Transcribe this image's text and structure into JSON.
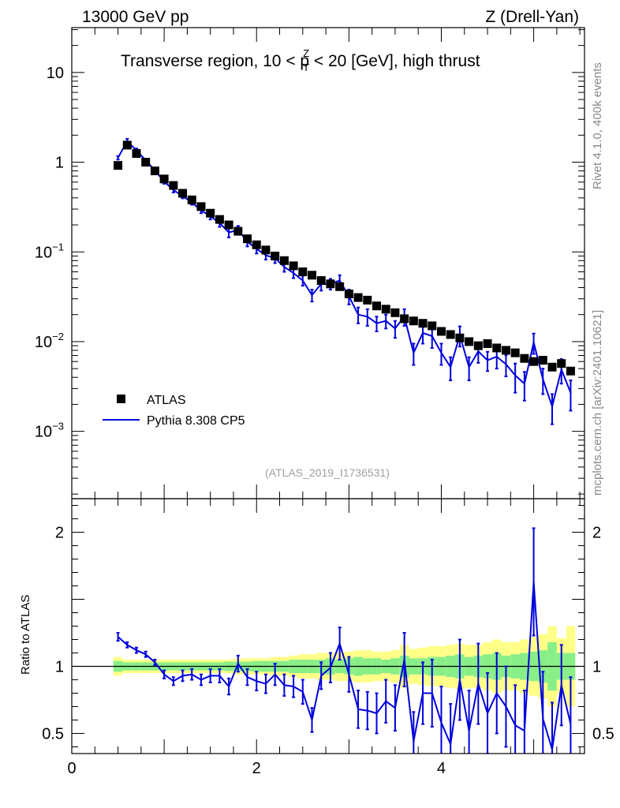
{
  "header": {
    "energy": "13000 GeV pp",
    "process": "Z (Drell-Yan)"
  },
  "side_labels": {
    "rivet": "Rivet 4.1.0,  400k events",
    "site": "mcplots.cern.ch [arXiv:2401.10621]"
  },
  "colors": {
    "data": "#000000",
    "mc": "#0000dd",
    "band_inner": "#88ee88",
    "band_outer": "#ffff88"
  },
  "chart_data": [
    {
      "type": "scatter",
      "title_parts": {
        "pre": "Transverse region, 10 < p",
        "sup": "Z",
        "sub": "T",
        "post": " < 20 [GeV], high thrust"
      },
      "yscale": "log",
      "xlim": [
        0,
        5.55
      ],
      "ylim": [
        0.00025,
        50
      ],
      "yticks": [
        {
          "value": 10,
          "label": "10"
        },
        {
          "value": 1,
          "label": "1"
        },
        {
          "value": 0.1,
          "base": "10",
          "exp": "−1"
        },
        {
          "value": 0.01,
          "base": "10",
          "exp": "−2"
        },
        {
          "value": 0.001,
          "base": "10",
          "exp": "−3"
        }
      ],
      "watermark": "(ATLAS_2019_I1736531)",
      "legend": [
        {
          "label": "ATLAS",
          "kind": "marker"
        },
        {
          "label": "Pythia 8.308 CP5",
          "kind": "line"
        }
      ],
      "x": [
        0.5,
        0.6,
        0.7,
        0.8,
        0.9,
        1.0,
        1.1,
        1.2,
        1.3,
        1.4,
        1.5,
        1.6,
        1.7,
        1.8,
        1.9,
        2.0,
        2.1,
        2.2,
        2.3,
        2.4,
        2.5,
        2.6,
        2.7,
        2.8,
        2.9,
        3.0,
        3.1,
        3.2,
        3.3,
        3.4,
        3.5,
        3.6,
        3.7,
        3.8,
        3.9,
        4.0,
        4.1,
        4.2,
        4.3,
        4.4,
        4.5,
        4.6,
        4.7,
        4.8,
        4.9,
        5.0,
        5.1,
        5.2,
        5.3,
        5.4
      ],
      "series": [
        {
          "name": "ATLAS",
          "values": [
            0.92,
            1.55,
            1.25,
            1.0,
            0.8,
            0.65,
            0.55,
            0.45,
            0.38,
            0.32,
            0.27,
            0.23,
            0.2,
            0.17,
            0.14,
            0.12,
            0.105,
            0.09,
            0.08,
            0.07,
            0.06,
            0.055,
            0.048,
            0.044,
            0.041,
            0.034,
            0.031,
            0.029,
            0.025,
            0.023,
            0.021,
            0.018,
            0.017,
            0.016,
            0.015,
            0.013,
            0.012,
            0.011,
            0.01,
            0.009,
            0.0095,
            0.0085,
            0.008,
            0.0075,
            0.0065,
            0.006,
            0.0062,
            0.0052,
            0.0057,
            0.0047
          ]
        },
        {
          "name": "Pythia 8.308 CP5",
          "values": [
            1.12,
            1.72,
            1.35,
            1.05,
            0.81,
            0.61,
            0.49,
            0.42,
            0.355,
            0.29,
            0.25,
            0.21,
            0.165,
            0.175,
            0.13,
            0.108,
            0.092,
            0.085,
            0.068,
            0.058,
            0.048,
            0.033,
            0.044,
            0.044,
            0.048,
            0.032,
            0.02,
            0.019,
            0.016,
            0.017,
            0.014,
            0.019,
            0.0075,
            0.0125,
            0.0115,
            0.0075,
            0.0052,
            0.0118,
            0.0052,
            0.0078,
            0.0062,
            0.0068,
            0.0056,
            0.0042,
            0.0034,
            0.0098,
            0.0038,
            0.0019,
            0.0049,
            0.0027
          ],
          "errors": [
            0.05,
            0.1,
            0.07,
            0.04,
            0.04,
            0.035,
            0.03,
            0.025,
            0.02,
            0.02,
            0.02,
            0.02,
            0.02,
            0.02,
            0.015,
            0.012,
            0.01,
            0.01,
            0.008,
            0.007,
            0.006,
            0.005,
            0.007,
            0.006,
            0.007,
            0.006,
            0.004,
            0.004,
            0.003,
            0.003,
            0.003,
            0.004,
            0.002,
            0.003,
            0.003,
            0.002,
            0.0015,
            0.003,
            0.0015,
            0.002,
            0.0015,
            0.0018,
            0.0015,
            0.0015,
            0.0012,
            0.0025,
            0.0012,
            0.0007,
            0.0015,
            0.001
          ]
        }
      ]
    },
    {
      "type": "line",
      "ylabel": "Ratio to ATLAS",
      "xlim": [
        0,
        5.55
      ],
      "ylim": [
        0.35,
        2.25
      ],
      "xticks": [
        {
          "value": 0,
          "label": "0"
        },
        {
          "value": 2,
          "label": "2"
        },
        {
          "value": 4,
          "label": "4"
        }
      ],
      "yticks": [
        {
          "value": 2,
          "label": "2"
        },
        {
          "value": 1,
          "label": "1"
        },
        {
          "value": 0.5,
          "label": "0.5"
        }
      ],
      "x": [
        0.5,
        0.6,
        0.7,
        0.8,
        0.9,
        1.0,
        1.1,
        1.2,
        1.3,
        1.4,
        1.5,
        1.6,
        1.7,
        1.8,
        1.9,
        2.0,
        2.1,
        2.2,
        2.3,
        2.4,
        2.5,
        2.6,
        2.7,
        2.8,
        2.9,
        3.0,
        3.1,
        3.2,
        3.3,
        3.4,
        3.5,
        3.6,
        3.7,
        3.8,
        3.9,
        4.0,
        4.1,
        4.2,
        4.3,
        4.4,
        4.5,
        4.6,
        4.7,
        4.8,
        4.9,
        5.0,
        5.1,
        5.2,
        5.3,
        5.4
      ],
      "series": [
        {
          "name": "Pythia 8.308 CP5",
          "values": [
            1.22,
            1.16,
            1.12,
            1.09,
            1.03,
            0.94,
            0.89,
            0.93,
            0.94,
            0.9,
            0.93,
            0.93,
            0.85,
            1.02,
            0.92,
            0.89,
            0.87,
            0.94,
            0.86,
            0.85,
            0.81,
            0.6,
            0.93,
            0.99,
            1.17,
            0.94,
            0.68,
            0.67,
            0.65,
            0.74,
            0.69,
            1.05,
            0.44,
            0.8,
            0.8,
            0.58,
            0.42,
            0.9,
            0.52,
            0.87,
            0.65,
            0.8,
            0.7,
            0.56,
            0.52,
            1.63,
            0.61,
            0.38,
            0.86,
            0.57
          ],
          "errors": [
            0.03,
            0.02,
            0.02,
            0.02,
            0.02,
            0.03,
            0.03,
            0.04,
            0.04,
            0.04,
            0.05,
            0.05,
            0.06,
            0.06,
            0.06,
            0.07,
            0.07,
            0.08,
            0.08,
            0.08,
            0.09,
            0.09,
            0.1,
            0.11,
            0.12,
            0.13,
            0.14,
            0.14,
            0.15,
            0.16,
            0.17,
            0.2,
            0.22,
            0.23,
            0.25,
            0.27,
            0.3,
            0.3,
            0.3,
            0.3,
            0.3,
            0.3,
            0.3,
            0.3,
            0.3,
            0.4,
            0.35,
            0.35,
            0.3,
            0.35
          ]
        }
      ],
      "band_inner_halfwidth": [
        0.04,
        0.03,
        0.03,
        0.03,
        0.03,
        0.03,
        0.03,
        0.03,
        0.03,
        0.03,
        0.03,
        0.03,
        0.035,
        0.035,
        0.035,
        0.04,
        0.04,
        0.04,
        0.04,
        0.05,
        0.05,
        0.05,
        0.05,
        0.06,
        0.05,
        0.06,
        0.07,
        0.06,
        0.06,
        0.05,
        0.06,
        0.08,
        0.06,
        0.06,
        0.07,
        0.07,
        0.08,
        0.09,
        0.07,
        0.08,
        0.09,
        0.1,
        0.08,
        0.09,
        0.1,
        0.11,
        0.12,
        0.18,
        0.1,
        0.1
      ],
      "band_outer_halfwidth": [
        0.07,
        0.05,
        0.05,
        0.05,
        0.05,
        0.05,
        0.05,
        0.05,
        0.05,
        0.05,
        0.05,
        0.05,
        0.05,
        0.06,
        0.06,
        0.06,
        0.06,
        0.07,
        0.07,
        0.08,
        0.09,
        0.09,
        0.1,
        0.1,
        0.11,
        0.11,
        0.12,
        0.12,
        0.11,
        0.11,
        0.12,
        0.16,
        0.13,
        0.14,
        0.15,
        0.15,
        0.16,
        0.17,
        0.16,
        0.16,
        0.18,
        0.2,
        0.18,
        0.18,
        0.2,
        0.22,
        0.24,
        0.3,
        0.21,
        0.3
      ]
    }
  ]
}
